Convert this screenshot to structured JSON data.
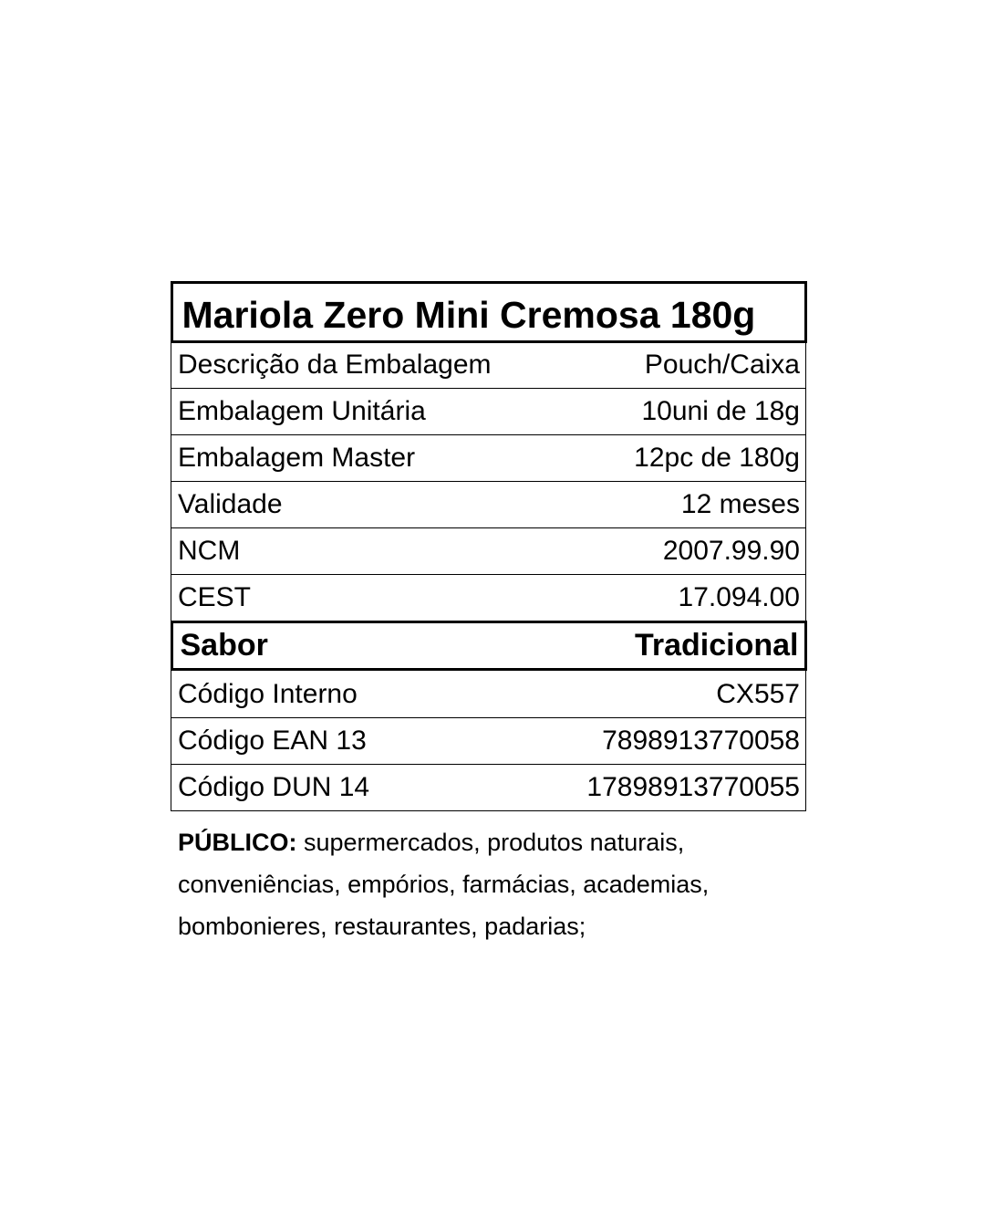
{
  "title": "Mariola Zero Mini Cremosa 180g",
  "rows": [
    {
      "label": "Descrição da Embalagem",
      "value": "Pouch/Caixa"
    },
    {
      "label": "Embalagem Unitária",
      "value": "10uni de 18g"
    },
    {
      "label": "Embalagem Master",
      "value": "12pc de 180g"
    },
    {
      "label": "Validade",
      "value": "12 meses"
    },
    {
      "label": "NCM",
      "value": "2007.99.90"
    },
    {
      "label": "CEST",
      "value": "17.094.00"
    }
  ],
  "flavor": {
    "label": "Sabor",
    "value": "Tradicional"
  },
  "codes": [
    {
      "label": "Código Interno",
      "value": "CX557"
    },
    {
      "label": "Código EAN 13",
      "value": "7898913770058"
    },
    {
      "label": "Código DUN 14",
      "value": "17898913770055"
    }
  ],
  "audience": {
    "label": "PÚBLICO:",
    "text": " supermercados, produtos naturais, conveniências, empórios, farmácias, academias, bombonieres, restaurantes, padarias;"
  }
}
